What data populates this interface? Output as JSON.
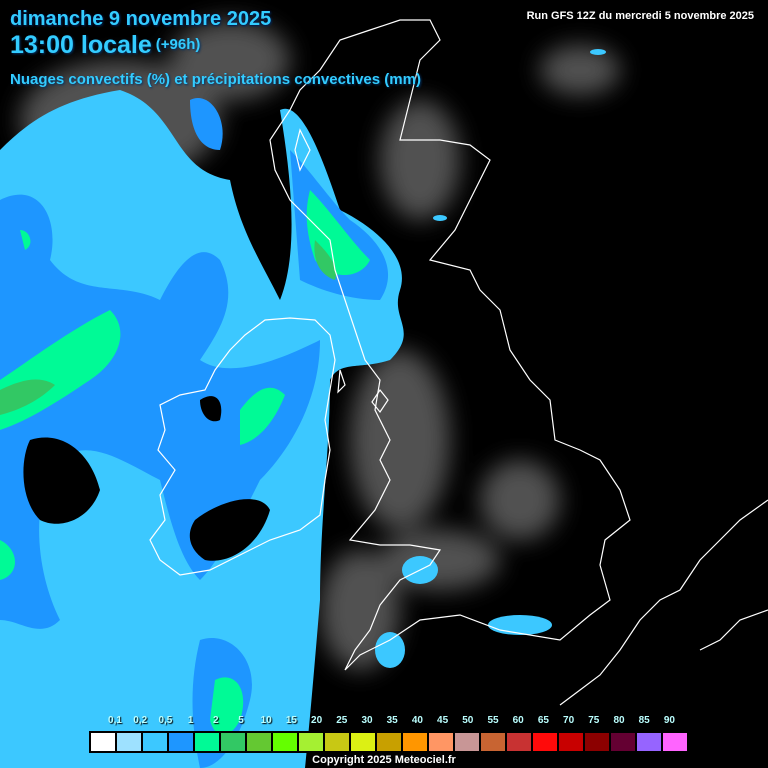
{
  "header": {
    "date": "dimanche 9 novembre 2025",
    "time": "13:00 locale",
    "lead": "(+96h)",
    "parameter": "Nuages convectifs (%) et précipitations convectives (mm)",
    "run": "Run GFS 12Z du mercredi 5 novembre 2025"
  },
  "legend": {
    "labels": [
      "0,1",
      "0,2",
      "0,5",
      "1",
      "2",
      "5",
      "10",
      "15",
      "20",
      "25",
      "30",
      "35",
      "40",
      "45",
      "50",
      "55",
      "60",
      "65",
      "70",
      "75",
      "80",
      "85",
      "90"
    ],
    "colors": [
      "#ffffff",
      "#9ee1ff",
      "#3cc8ff",
      "#1e96ff",
      "#00fa96",
      "#32c864",
      "#64c832",
      "#64ff00",
      "#a5f032",
      "#c8c814",
      "#dcf014",
      "#c8a000",
      "#ff9600",
      "#ff9664",
      "#c89696",
      "#c86432",
      "#c83232",
      "#ff0a0a",
      "#c80000",
      "#8c0000",
      "#640032",
      "#9664ff",
      "#ff64ff"
    ]
  },
  "footer": {
    "copyright": "Copyright 2025 Meteociel.fr"
  },
  "map": {
    "region": "British Isles",
    "background": "#000000",
    "coastline_color": "#ffffff",
    "cloud_color": "#808080"
  }
}
